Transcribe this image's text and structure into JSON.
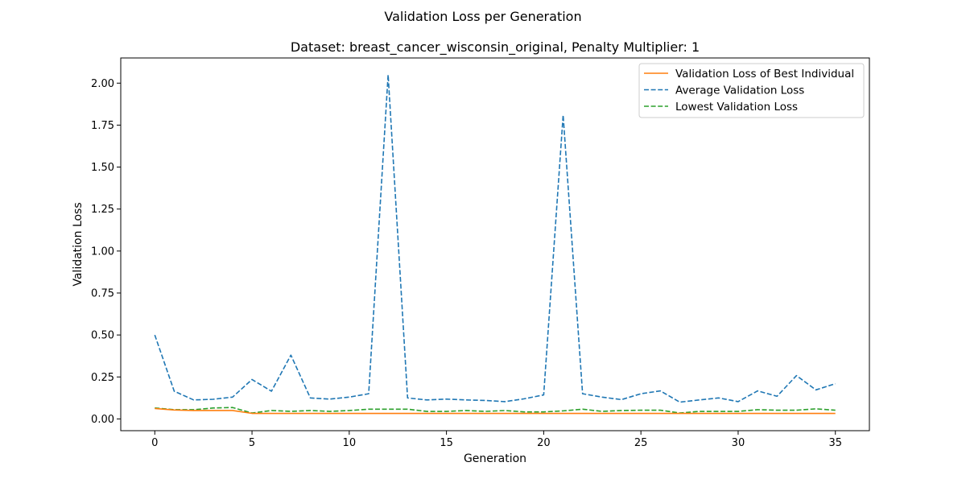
{
  "figure_title": "Validation Loss per Generation",
  "chart_data": {
    "type": "line",
    "title": "Dataset: breast_cancer_wisconsin_original, Penalty Multiplier: 1",
    "xlabel": "Generation",
    "ylabel": "Validation Loss",
    "xlim": [
      -1.75,
      36.75
    ],
    "ylim": [
      -0.07,
      2.15
    ],
    "xticks": [
      0,
      5,
      10,
      15,
      20,
      25,
      30,
      35
    ],
    "yticks": [
      0.0,
      0.25,
      0.5,
      0.75,
      1.0,
      1.25,
      1.5,
      1.75,
      2.0
    ],
    "ytick_labels": [
      "0.00",
      "0.25",
      "0.50",
      "0.75",
      "1.00",
      "1.25",
      "1.50",
      "1.75",
      "2.00"
    ],
    "grid": false,
    "legend_position": "top-right",
    "x": [
      0,
      1,
      2,
      3,
      4,
      5,
      6,
      7,
      8,
      9,
      10,
      11,
      12,
      13,
      14,
      15,
      16,
      17,
      18,
      19,
      20,
      21,
      22,
      23,
      24,
      25,
      26,
      27,
      28,
      29,
      30,
      31,
      32,
      33,
      34,
      35
    ],
    "series": [
      {
        "name": "Validation Loss of Best Individual",
        "style": "solid",
        "color": "#ff7f0e",
        "values": [
          0.062,
          0.053,
          0.05,
          0.05,
          0.05,
          0.033,
          0.033,
          0.033,
          0.033,
          0.033,
          0.033,
          0.033,
          0.033,
          0.033,
          0.033,
          0.033,
          0.033,
          0.033,
          0.033,
          0.033,
          0.033,
          0.033,
          0.033,
          0.033,
          0.033,
          0.033,
          0.033,
          0.033,
          0.033,
          0.033,
          0.033,
          0.033,
          0.033,
          0.033,
          0.033,
          0.033
        ]
      },
      {
        "name": "Average Validation Loss",
        "style": "dashed",
        "color": "#1f77b4",
        "values": [
          0.5,
          0.165,
          0.113,
          0.117,
          0.13,
          0.235,
          0.165,
          0.38,
          0.125,
          0.118,
          0.13,
          0.15,
          2.05,
          0.125,
          0.113,
          0.118,
          0.113,
          0.11,
          0.103,
          0.12,
          0.143,
          1.81,
          0.15,
          0.13,
          0.115,
          0.15,
          0.167,
          0.1,
          0.113,
          0.125,
          0.103,
          0.167,
          0.135,
          0.258,
          0.173,
          0.21
        ]
      },
      {
        "name": "Lowest Validation Loss",
        "style": "dashed",
        "color": "#2ca02c",
        "values": [
          0.065,
          0.055,
          0.055,
          0.065,
          0.068,
          0.035,
          0.05,
          0.045,
          0.05,
          0.045,
          0.05,
          0.058,
          0.058,
          0.058,
          0.045,
          0.045,
          0.05,
          0.045,
          0.05,
          0.042,
          0.042,
          0.048,
          0.058,
          0.045,
          0.05,
          0.052,
          0.052,
          0.035,
          0.045,
          0.045,
          0.045,
          0.055,
          0.052,
          0.052,
          0.06,
          0.052
        ]
      }
    ]
  }
}
